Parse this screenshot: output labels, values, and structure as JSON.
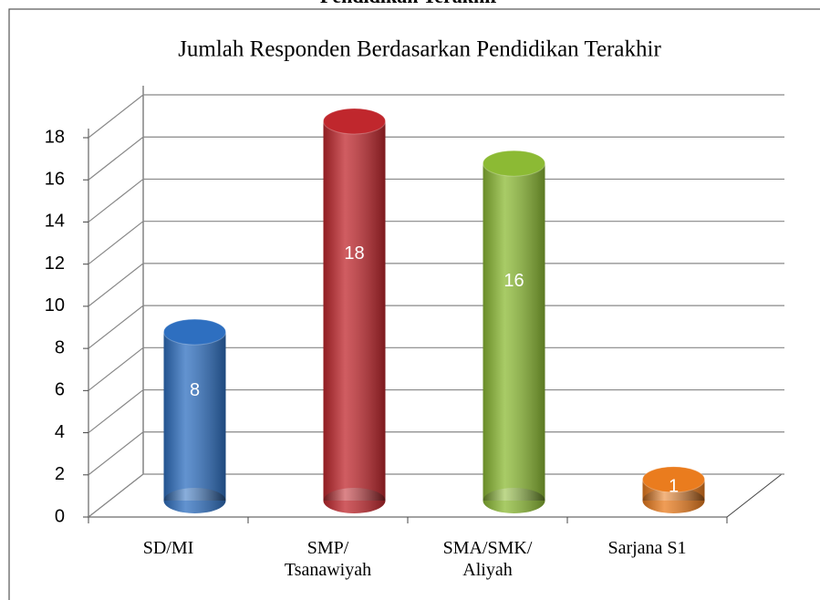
{
  "heading": "Pendidikan Terakhir",
  "chart_data": {
    "type": "bar3d",
    "title": "Jumlah Responden Berdasarkan Pendidikan Terakhir",
    "categories": [
      "SD/MI",
      "SMP/\nTsanawiyah",
      "SMA/SMK/\nAliyah",
      "Sarjana S1"
    ],
    "values": [
      8,
      18,
      16,
      1
    ],
    "colors": [
      "#2e6fc0",
      "#c0272d",
      "#8cba34",
      "#ea7c1e"
    ],
    "ylim": [
      0,
      18
    ],
    "yticks": [
      0,
      2,
      4,
      6,
      8,
      10,
      12,
      14,
      16,
      18
    ],
    "grid": true
  }
}
